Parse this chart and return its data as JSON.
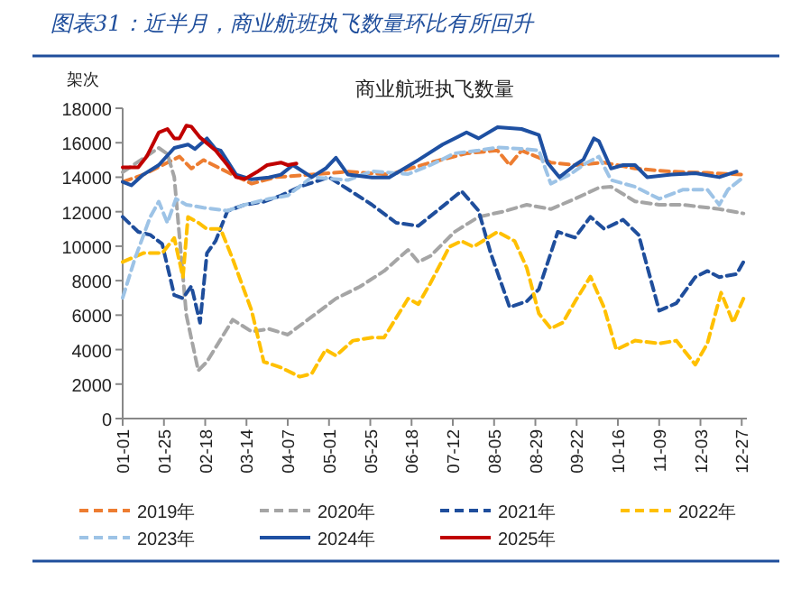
{
  "chart_data": {
    "type": "line",
    "title": "商业航班执飞数量",
    "subtitle": "图表31：近半月，商业航班执飞数量环比有所回升",
    "ylabel": "架次",
    "ylim": [
      0,
      18000
    ],
    "yticks": [
      0,
      2000,
      4000,
      6000,
      8000,
      10000,
      12000,
      14000,
      16000,
      18000
    ],
    "xlim": [
      "--01-01",
      "--12-30"
    ],
    "xticks": [
      {
        "value": "--01-01",
        "label": "01-01"
      },
      {
        "value": "--01-25",
        "label": "01-25"
      },
      {
        "value": "--02-18",
        "label": "02-18"
      },
      {
        "value": "--03-14",
        "label": "03-14"
      },
      {
        "value": "--04-07",
        "label": "04-07"
      },
      {
        "value": "--05-01",
        "label": "05-01"
      },
      {
        "value": "--05-25",
        "label": "05-25"
      },
      {
        "value": "--06-18",
        "label": "06-18"
      },
      {
        "value": "--07-12",
        "label": "07-12"
      },
      {
        "value": "--08-05",
        "label": "08-05"
      },
      {
        "value": "--08-29",
        "label": "08-29"
      },
      {
        "value": "--09-22",
        "label": "09-22"
      },
      {
        "value": "--10-16",
        "label": "10-16"
      },
      {
        "value": "--11-09",
        "label": "11-09"
      },
      {
        "value": "--12-03",
        "label": "12-03"
      },
      {
        "value": "--12-27",
        "label": "12-27"
      }
    ],
    "grid": false,
    "legend": "bottom",
    "series": [
      {
        "name": "2019年",
        "color": "#ed7d31",
        "line_style": "dashed",
        "x": [
          "--01-01",
          "--01-13",
          "--01-27",
          "--02-03",
          "--02-10",
          "--02-17",
          "--03-03",
          "--03-17",
          "--03-31",
          "--04-21",
          "--05-12",
          "--06-05",
          "--06-29",
          "--07-20",
          "--08-07",
          "--08-14",
          "--08-21",
          "--09-07",
          "--09-21",
          "--10-08",
          "--10-26",
          "--11-16",
          "--12-07",
          "--12-28"
        ],
        "values": [
          13730,
          14150,
          14850,
          15200,
          14500,
          15000,
          14300,
          13630,
          14000,
          14150,
          14330,
          14150,
          14850,
          15380,
          15550,
          14700,
          15550,
          14850,
          14700,
          14850,
          14500,
          14330,
          14250,
          14150
        ]
      },
      {
        "name": "2020年",
        "color": "#a5a5a5",
        "line_style": "dashed",
        "x": [
          "--01-01",
          "--01-22",
          "--01-27",
          "--01-31",
          "--02-07",
          "--02-14",
          "--02-19",
          "--03-06",
          "--03-17",
          "--03-27",
          "--04-07",
          "--04-21",
          "--05-05",
          "--05-19",
          "--06-02",
          "--06-16",
          "--06-22",
          "--06-29",
          "--07-13",
          "--07-27",
          "--08-10",
          "--08-24",
          "--09-07",
          "--09-21",
          "--10-05",
          "--10-12",
          "--10-26",
          "--11-09",
          "--11-23",
          "--12-14",
          "--12-28"
        ],
        "values": [
          14300,
          15700,
          15350,
          14000,
          6000,
          2780,
          3300,
          5740,
          5040,
          5200,
          4870,
          5900,
          6960,
          7650,
          8560,
          9780,
          9080,
          9430,
          10830,
          11700,
          12000,
          12400,
          12150,
          12750,
          13400,
          13450,
          12600,
          12400,
          12400,
          12150,
          11900
        ]
      },
      {
        "name": "2021年",
        "color": "#1f4e9c",
        "line_style": "dashed",
        "x": [
          "--01-01",
          "--01-10",
          "--01-17",
          "--01-24",
          "--01-31",
          "--02-05",
          "--02-10",
          "--02-15",
          "--02-19",
          "--02-24",
          "--03-03",
          "--03-13",
          "--03-24",
          "--04-03",
          "--04-14",
          "--05-01",
          "--05-12",
          "--05-26",
          "--06-09",
          "--06-22",
          "--07-03",
          "--07-17",
          "--07-27",
          "--08-03",
          "--08-14",
          "--08-24",
          "--08-31",
          "--09-11",
          "--09-21",
          "--09-30",
          "--10-08",
          "--10-19",
          "--10-28",
          "--11-09",
          "--11-19",
          "--11-30",
          "--12-07",
          "--12-14",
          "--12-24",
          "--12-28"
        ],
        "values": [
          11700,
          10830,
          10650,
          10130,
          7160,
          6980,
          7680,
          5560,
          9600,
          10300,
          12050,
          12400,
          12580,
          12930,
          13450,
          14000,
          13300,
          12400,
          11350,
          11180,
          12060,
          13200,
          12060,
          9600,
          6460,
          6800,
          7500,
          10830,
          10500,
          11700,
          11000,
          11530,
          10650,
          6260,
          6690,
          8200,
          8560,
          8200,
          8380,
          9080
        ]
      },
      {
        "name": "2022年",
        "color": "#ffc000",
        "line_style": "dashed",
        "x": [
          "--01-01",
          "--01-13",
          "--01-24",
          "--01-31",
          "--02-05",
          "--02-08",
          "--02-14",
          "--02-19",
          "--02-27",
          "--03-06",
          "--03-17",
          "--03-24",
          "--04-03",
          "--04-14",
          "--04-21",
          "--04-29",
          "--05-05",
          "--05-15",
          "--05-26",
          "--06-02",
          "--06-16",
          "--06-22",
          "--06-29",
          "--07-10",
          "--07-17",
          "--07-24",
          "--08-07",
          "--08-17",
          "--08-24",
          "--08-31",
          "--09-07",
          "--09-14",
          "--09-21",
          "--09-30",
          "--10-08",
          "--10-15",
          "--10-26",
          "--11-09",
          "--11-19",
          "--11-30",
          "--12-07",
          "--12-15",
          "--12-22",
          "--12-28"
        ],
        "values": [
          9080,
          9600,
          9600,
          10480,
          8200,
          11700,
          11360,
          11000,
          11000,
          9250,
          6260,
          3300,
          2960,
          2430,
          2610,
          4000,
          3650,
          4520,
          4700,
          4700,
          6960,
          6640,
          7860,
          9960,
          10300,
          9960,
          10830,
          10300,
          8740,
          6090,
          5220,
          5570,
          6780,
          8240,
          6430,
          4000,
          4520,
          4350,
          4520,
          3130,
          4350,
          7300,
          5570,
          6960
        ]
      },
      {
        "name": "2023年",
        "color": "#9dc3e6",
        "line_style": "dashed",
        "x": [
          "--01-01",
          "--01-08",
          "--01-17",
          "--01-22",
          "--01-27",
          "--02-01",
          "--02-07",
          "--02-17",
          "--03-03",
          "--03-13",
          "--03-27",
          "--04-07",
          "--04-21",
          "--05-12",
          "--05-26",
          "--06-16",
          "--06-29",
          "--07-13",
          "--07-27",
          "--08-07",
          "--08-21",
          "--08-31",
          "--09-07",
          "--09-18",
          "--09-28",
          "--10-05",
          "--10-12",
          "--10-26",
          "--11-09",
          "--11-23",
          "--12-07",
          "--12-14",
          "--12-19",
          "--12-28"
        ],
        "values": [
          7000,
          9250,
          11700,
          12580,
          11350,
          12750,
          12400,
          12230,
          12060,
          12400,
          12750,
          12930,
          14000,
          13830,
          14350,
          14180,
          14700,
          15380,
          15550,
          15730,
          15650,
          15550,
          13630,
          14150,
          14850,
          15200,
          13830,
          13450,
          12750,
          13280,
          13280,
          12400,
          13280,
          14000
        ]
      },
      {
        "name": "2024年",
        "color": "#1e50a2",
        "line_style": "solid",
        "x": [
          "--01-01",
          "--01-06",
          "--01-13",
          "--01-22",
          "--01-31",
          "--02-08",
          "--02-12",
          "--02-19",
          "--02-24",
          "--02-27",
          "--03-08",
          "--03-17",
          "--03-27",
          "--04-03",
          "--04-10",
          "--04-21",
          "--04-29",
          "--05-05",
          "--05-12",
          "--05-26",
          "--06-05",
          "--06-22",
          "--07-06",
          "--07-20",
          "--07-27",
          "--08-07",
          "--08-21",
          "--08-31",
          "--09-05",
          "--09-12",
          "--09-21",
          "--09-26",
          "--10-02",
          "--10-05",
          "--10-12",
          "--10-19",
          "--10-26",
          "--11-02",
          "--11-16",
          "--11-30",
          "--12-14",
          "--12-24"
        ],
        "values": [
          13730,
          13530,
          14150,
          14700,
          15700,
          15900,
          15630,
          16250,
          15630,
          15550,
          14150,
          13880,
          13980,
          14150,
          14700,
          14000,
          14500,
          15130,
          14150,
          13980,
          13980,
          15000,
          15900,
          16600,
          16250,
          16900,
          16800,
          16450,
          14850,
          14000,
          14700,
          15030,
          16250,
          16080,
          14500,
          14700,
          14700,
          14000,
          14150,
          14230,
          14000,
          14330
        ]
      },
      {
        "name": "2025年",
        "color": "#c00000",
        "line_style": "solid",
        "x": [
          "--01-01",
          "--01-10",
          "--01-15",
          "--01-22",
          "--01-27",
          "--01-31",
          "--02-03",
          "--02-07",
          "--02-10",
          "--02-15",
          "--02-24",
          "--03-03",
          "--03-08",
          "--03-13",
          "--03-20",
          "--03-26",
          "--04-03",
          "--04-07",
          "--04-12"
        ],
        "values": [
          14570,
          14570,
          15200,
          16600,
          16800,
          16250,
          16250,
          17000,
          16930,
          16300,
          15550,
          14700,
          14000,
          13900,
          14300,
          14700,
          14850,
          14700,
          14800
        ]
      }
    ]
  }
}
